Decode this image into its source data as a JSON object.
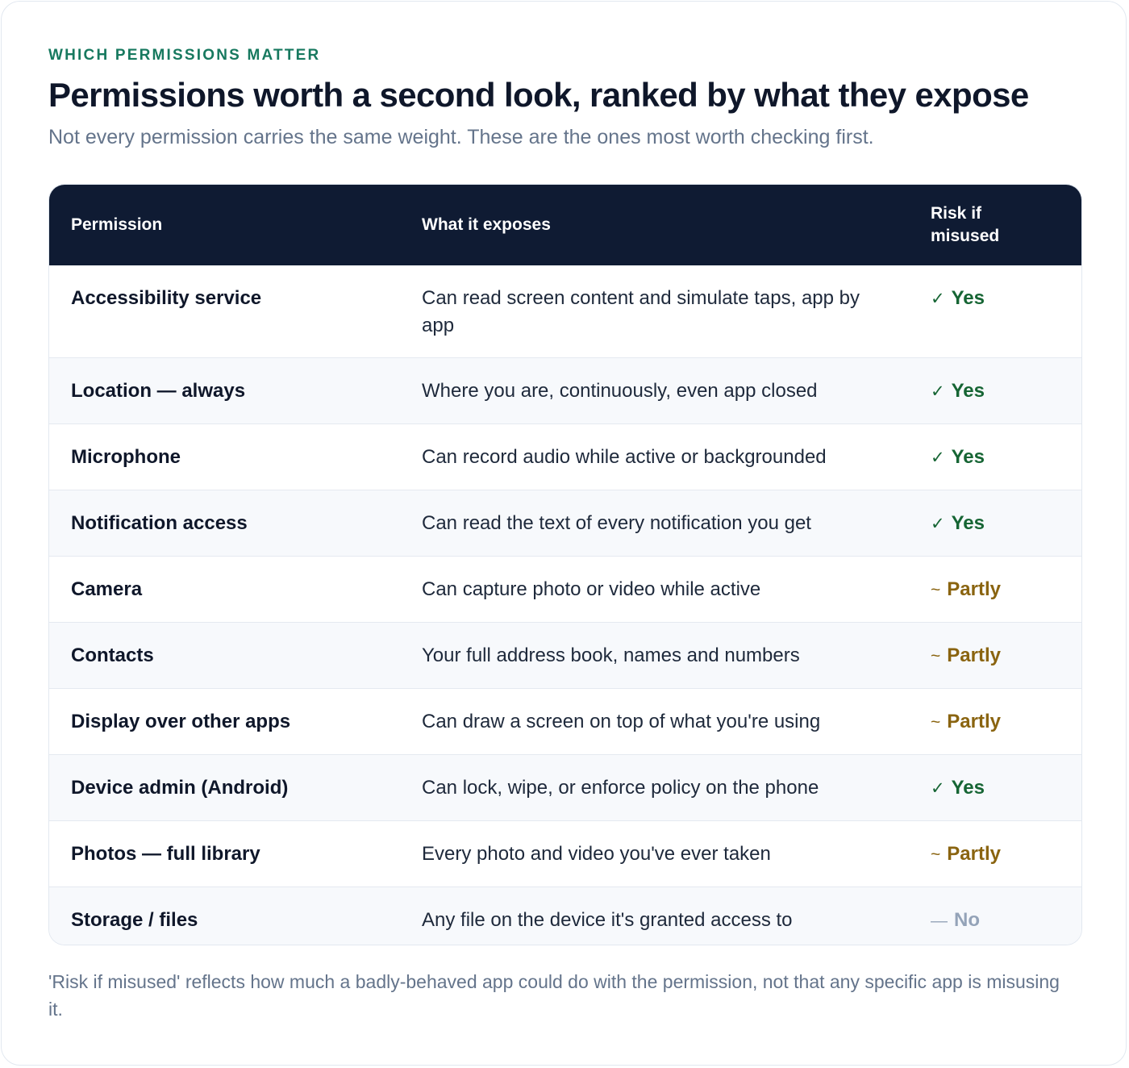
{
  "eyebrow": "WHICH PERMISSIONS MATTER",
  "title": "Permissions worth a second look, ranked by what they expose",
  "subtitle": "Not every permission carries the same weight. These are the ones most worth checking first.",
  "table": {
    "headers": {
      "permission": "Permission",
      "exposes": "What it exposes",
      "risk": "Risk if misused"
    },
    "rows": [
      {
        "permission": "Accessibility service",
        "exposes": "Can read screen content and simulate taps, app by app",
        "risk_mark": "✓",
        "risk": "Yes",
        "level": "yes"
      },
      {
        "permission": "Location — always",
        "exposes": "Where you are, continuously, even app closed",
        "risk_mark": "✓",
        "risk": "Yes",
        "level": "yes"
      },
      {
        "permission": "Microphone",
        "exposes": "Can record audio while active or backgrounded",
        "risk_mark": "✓",
        "risk": "Yes",
        "level": "yes"
      },
      {
        "permission": "Notification access",
        "exposes": "Can read the text of every notification you get",
        "risk_mark": "✓",
        "risk": "Yes",
        "level": "yes"
      },
      {
        "permission": "Camera",
        "exposes": "Can capture photo or video while active",
        "risk_mark": "~",
        "risk": "Partly",
        "level": "partly"
      },
      {
        "permission": "Contacts",
        "exposes": "Your full address book, names and numbers",
        "risk_mark": "~",
        "risk": "Partly",
        "level": "partly"
      },
      {
        "permission": "Display over other apps",
        "exposes": "Can draw a screen on top of what you're using",
        "risk_mark": "~",
        "risk": "Partly",
        "level": "partly"
      },
      {
        "permission": "Device admin (Android)",
        "exposes": "Can lock, wipe, or enforce policy on the phone",
        "risk_mark": "✓",
        "risk": "Yes",
        "level": "yes"
      },
      {
        "permission": "Photos — full library",
        "exposes": "Every photo and video you've ever taken",
        "risk_mark": "~",
        "risk": "Partly",
        "level": "partly"
      },
      {
        "permission": "Storage / files",
        "exposes": "Any file on the device it's granted access to",
        "risk_mark": "—",
        "risk": "No",
        "level": "no"
      }
    ]
  },
  "colors": {
    "accent": "#17795f",
    "header_bg": "#0f1b33",
    "risk_yes": "#166534",
    "risk_partly": "#8a6410",
    "risk_no": "#94a3b8"
  },
  "footnote": "'Risk if misused' reflects how much a badly-behaved app could do with the permission, not that any specific app is misusing it."
}
